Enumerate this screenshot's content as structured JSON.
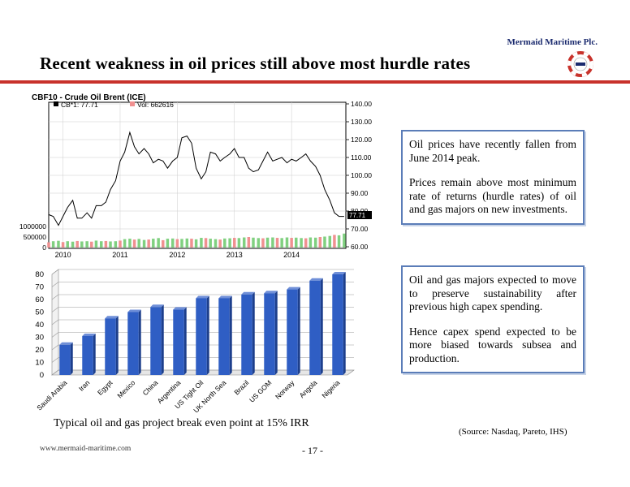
{
  "header": {
    "company": "Mermaid Maritime Plc.",
    "title": "Recent weakness in oil prices still above most hurdle rates"
  },
  "panels": {
    "top": [
      "Oil prices have recently fallen from June 2014 peak.",
      "Prices remain above most minimum rate of returns (hurdle rates) of oil and gas majors on new investments."
    ],
    "bottom": [
      "Oil and gas majors expected to move to preserve sustainability after previous high capex spending.",
      "Hence capex spend expected to be more biased towards subsea and production."
    ]
  },
  "caption": "Typical oil and gas project break even point at 15% IRR",
  "source": "(Source: Nasdaq, Pareto, IHS)",
  "footer": {
    "url": "www.mermaid-maritime.com",
    "page": "- 17 -"
  },
  "colors": {
    "accent_red": "#c8322b",
    "panel_border": "#5b7db8",
    "bar_blue": "#2f5ec4",
    "volume_green": "#80d080",
    "volume_red": "#f09090"
  },
  "chart_data": [
    {
      "type": "line",
      "title": "CBF10 - Crude Oil Brent (ICE)",
      "legend": [
        "CB*1: 77.71",
        "Vol: 662616"
      ],
      "last_value_label": "77.71",
      "y_ticks": [
        "140.00",
        "130.00",
        "120.00",
        "110.00",
        "100.00",
        "90.00",
        "80.00",
        "70.00",
        "60.00"
      ],
      "vol_ticks": [
        "1000000",
        "500000",
        "0"
      ],
      "x_ticks": [
        "2010",
        "2011",
        "2012",
        "2013",
        "2014"
      ],
      "ylim": [
        60,
        140
      ],
      "x": [
        2009.75,
        2009.83,
        2009.92,
        2010.0,
        2010.08,
        2010.17,
        2010.25,
        2010.33,
        2010.42,
        2010.5,
        2010.58,
        2010.67,
        2010.75,
        2010.83,
        2010.92,
        2011.0,
        2011.08,
        2011.17,
        2011.25,
        2011.33,
        2011.42,
        2011.5,
        2011.58,
        2011.67,
        2011.75,
        2011.83,
        2011.92,
        2012.0,
        2012.08,
        2012.17,
        2012.25,
        2012.33,
        2012.42,
        2012.5,
        2012.58,
        2012.67,
        2012.75,
        2012.83,
        2012.92,
        2013.0,
        2013.08,
        2013.17,
        2013.25,
        2013.33,
        2013.42,
        2013.5,
        2013.58,
        2013.67,
        2013.75,
        2013.83,
        2013.92,
        2014.0,
        2014.08,
        2014.17,
        2014.25,
        2014.33,
        2014.42,
        2014.5,
        2014.58,
        2014.67,
        2014.75,
        2014.83,
        2014.92
      ],
      "series": [
        {
          "values": [
            78,
            77,
            72,
            77,
            82,
            86,
            76,
            76,
            79,
            76,
            83,
            83,
            85,
            92,
            97,
            108,
            113,
            124,
            116,
            112,
            115,
            112,
            107,
            109,
            108,
            104,
            108,
            110,
            121,
            122,
            118,
            104,
            98,
            102,
            113,
            112,
            108,
            110,
            112,
            115,
            110,
            110,
            104,
            102,
            103,
            108,
            113,
            108,
            109,
            110,
            107,
            109,
            108,
            110,
            112,
            108,
            105,
            100,
            92,
            86,
            79,
            77,
            77
          ]
        }
      ],
      "volume": [
        250000,
        300000,
        320000,
        260000,
        300000,
        280000,
        310000,
        290000,
        300000,
        280000,
        330000,
        300000,
        310000,
        290000,
        300000,
        330000,
        400000,
        420000,
        380000,
        410000,
        360000,
        380000,
        420000,
        450000,
        350000,
        420000,
        430000,
        400000,
        410000,
        430000,
        420000,
        390000,
        460000,
        450000,
        420000,
        400000,
        380000,
        430000,
        440000,
        460000,
        450000,
        480000,
        500000,
        470000,
        450000,
        440000,
        470000,
        480000,
        460000,
        450000,
        480000,
        460000,
        470000,
        450000,
        440000,
        480000,
        470000,
        500000,
        520000,
        550000,
        600000,
        580000,
        662616
      ]
    },
    {
      "type": "bar",
      "categories": [
        "Saudi Arabia",
        "Iran",
        "Egypt",
        "Mexico",
        "China",
        "Argentina",
        "US Tight Oil",
        "UK North Sea",
        "Brazil",
        "US GOM",
        "Norway",
        "Angola",
        "Nigeria"
      ],
      "values": [
        24,
        31,
        45,
        50,
        54,
        52,
        61,
        61,
        64,
        65,
        68,
        75,
        80
      ],
      "ylim": [
        0,
        80
      ],
      "y_ticks": [
        "0",
        "10",
        "20",
        "30",
        "40",
        "50",
        "60",
        "70",
        "80"
      ]
    }
  ]
}
